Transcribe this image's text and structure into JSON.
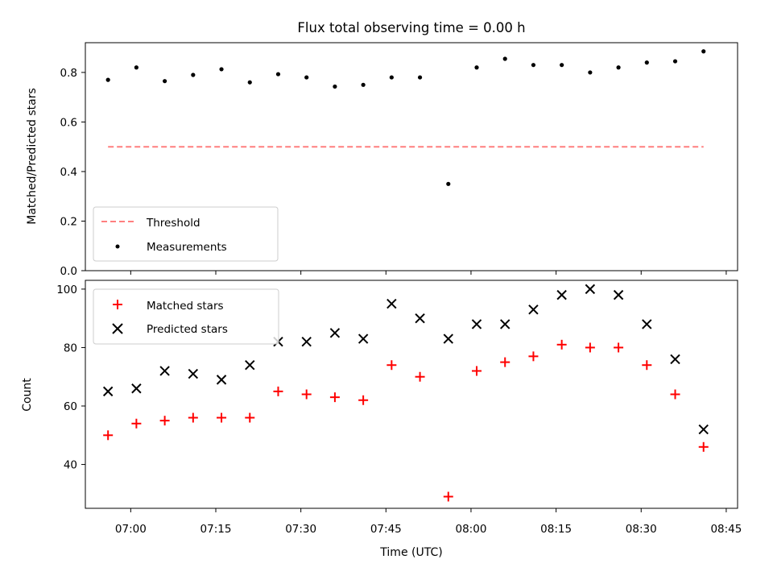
{
  "chart_data": [
    {
      "type": "scatter",
      "title": "Flux total observing time = 0.00 h",
      "xlabel": "",
      "ylabel": "Matched/Predicted stars",
      "ylim": [
        0,
        0.92
      ],
      "yticks": [
        "0.0",
        "0.2",
        "0.4",
        "0.6",
        "0.8"
      ],
      "legend_position": "lower-left",
      "series": [
        {
          "name": "Threshold",
          "style": "dashed-line",
          "color": "#ff7f7f",
          "x": [
            "06:56",
            "08:41"
          ],
          "values": [
            0.5,
            0.5
          ]
        },
        {
          "name": "Measurements",
          "style": "dot",
          "color": "#000000",
          "x": [
            "06:56",
            "07:01",
            "07:06",
            "07:11",
            "07:16",
            "07:21",
            "07:26",
            "07:31",
            "07:36",
            "07:41",
            "07:46",
            "07:51",
            "07:56",
            "08:01",
            "08:06",
            "08:11",
            "08:16",
            "08:21",
            "08:26",
            "08:31",
            "08:36",
            "08:41"
          ],
          "values": [
            0.77,
            0.82,
            0.765,
            0.79,
            0.813,
            0.76,
            0.793,
            0.78,
            0.743,
            0.75,
            0.78,
            0.78,
            0.35,
            0.82,
            0.855,
            0.83,
            0.83,
            0.8,
            0.82,
            0.84,
            0.845,
            0.885
          ]
        }
      ]
    },
    {
      "type": "scatter",
      "title": "",
      "xlabel": "Time (UTC)",
      "ylabel": "Count",
      "ylim": [
        25,
        103
      ],
      "yticks": [
        "40",
        "60",
        "80",
        "100"
      ],
      "xticks": [
        "07:00",
        "07:15",
        "07:30",
        "07:45",
        "08:00",
        "08:15",
        "08:30",
        "08:45"
      ],
      "x_range": [
        "06:52",
        "08:47"
      ],
      "legend_position": "upper-left",
      "series": [
        {
          "name": "Matched stars",
          "marker": "plus",
          "color": "#ff0000",
          "x": [
            "06:56",
            "07:01",
            "07:06",
            "07:11",
            "07:16",
            "07:21",
            "07:26",
            "07:31",
            "07:36",
            "07:41",
            "07:46",
            "07:51",
            "07:56",
            "08:01",
            "08:06",
            "08:11",
            "08:16",
            "08:21",
            "08:26",
            "08:31",
            "08:36",
            "08:41"
          ],
          "values": [
            50,
            54,
            55,
            56,
            56,
            56,
            65,
            64,
            63,
            62,
            74,
            70,
            29,
            72,
            75,
            77,
            81,
            80,
            80,
            74,
            64,
            46
          ]
        },
        {
          "name": "Predicted stars",
          "marker": "x",
          "color": "#000000",
          "x": [
            "06:56",
            "07:01",
            "07:06",
            "07:11",
            "07:16",
            "07:21",
            "07:26",
            "07:31",
            "07:36",
            "07:41",
            "07:46",
            "07:51",
            "07:56",
            "08:01",
            "08:06",
            "08:11",
            "08:16",
            "08:21",
            "08:26",
            "08:31",
            "08:36",
            "08:41"
          ],
          "values": [
            65,
            66,
            72,
            71,
            69,
            74,
            82,
            82,
            85,
            83,
            95,
            90,
            83,
            88,
            88,
            93,
            98,
            100,
            98,
            88,
            76,
            52
          ]
        }
      ]
    }
  ]
}
